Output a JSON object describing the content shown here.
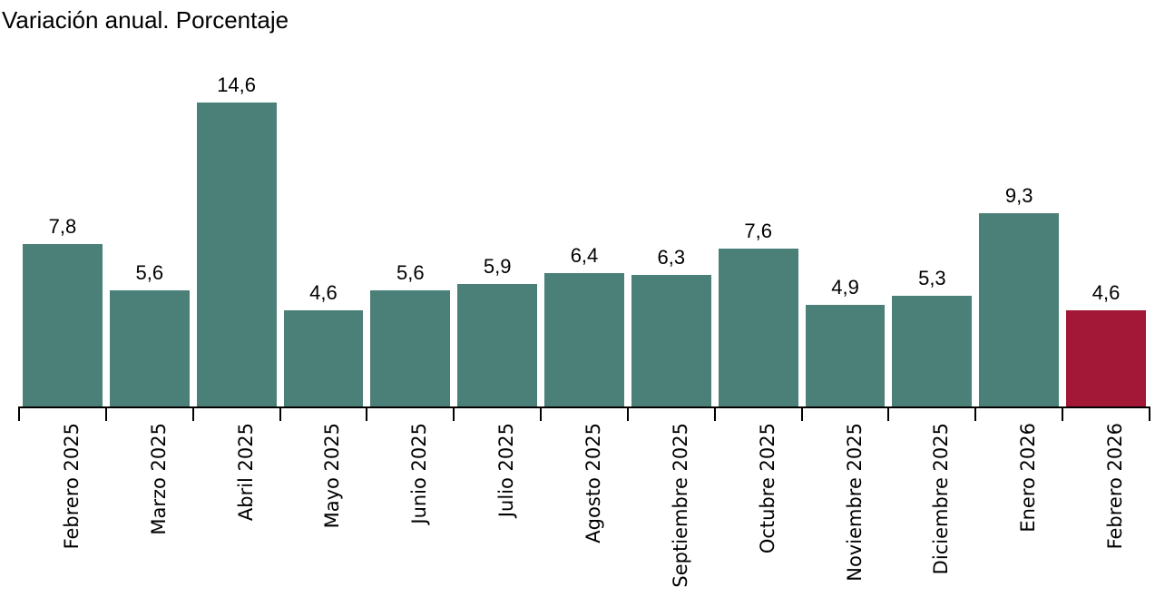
{
  "title": "Variación anual. Porcentaje",
  "chart_data": {
    "type": "bar",
    "title": "Variación anual. Porcentaje",
    "xlabel": "",
    "ylabel": "Porcentaje",
    "categories": [
      "Febrero 2025",
      "Marzo 2025",
      "Abril 2025",
      "Mayo 2025",
      "Junio 2025",
      "Julio 2025",
      "Agosto 2025",
      "Septiembre 2025",
      "Octubre 2025",
      "Noviembre 2025",
      "Diciembre 2025",
      "Enero 2026",
      "Febrero 2026"
    ],
    "values": [
      7.8,
      5.6,
      14.6,
      4.6,
      5.6,
      5.9,
      6.4,
      6.3,
      7.6,
      4.9,
      5.3,
      9.3,
      4.6
    ],
    "value_labels": [
      "7,8",
      "5,6",
      "14,6",
      "4,6",
      "5,6",
      "5,9",
      "6,4",
      "6,3",
      "7,6",
      "4,9",
      "5,3",
      "9,3",
      "4,6"
    ],
    "ylim": [
      0,
      14.6
    ],
    "grid": false,
    "legend": "none",
    "decimal_separator": ",",
    "bar_color": "#4A8078",
    "highlight_color": "#A31837",
    "highlight_index": 12,
    "axis_color": "#000000",
    "text_color": "#000000",
    "background_color": "#FFFFFF"
  }
}
